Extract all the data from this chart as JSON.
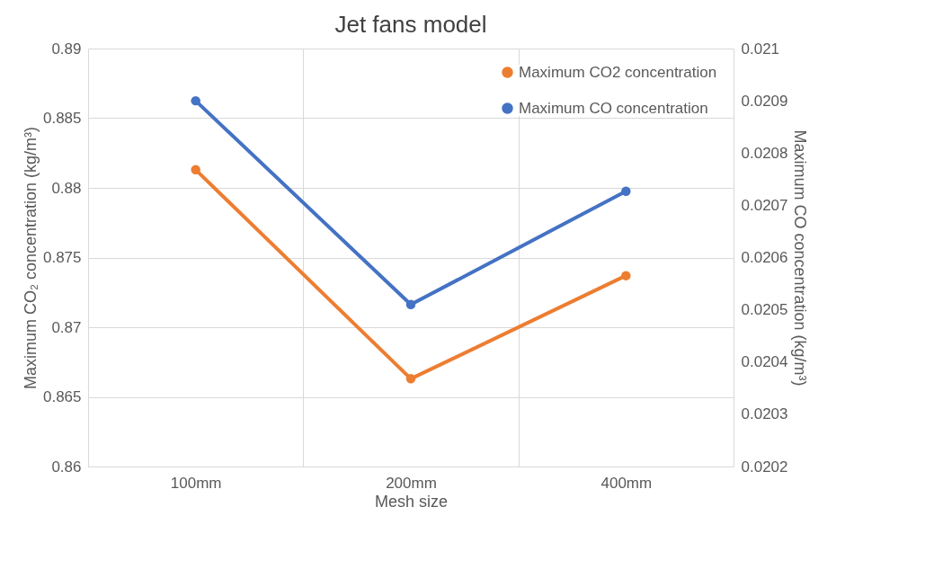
{
  "chart_data": {
    "type": "line",
    "title": "Jet fans model",
    "xlabel": "Mesh size",
    "ylabel": "Maximum CO₂ concentration (kg/m³)",
    "y2label": "Maximum CO concentration (kg/m³)",
    "categories": [
      "100mm",
      "200mm",
      "400mm"
    ],
    "series": [
      {
        "name": "Maximum CO2 concentration",
        "color": "#ed7d31",
        "values": [
          0.8813,
          0.8663,
          0.8737
        ]
      },
      {
        "name": "Maximum CO concentration",
        "color": "#4472c4",
        "axis": "y2",
        "values": [
          0.0209,
          0.02051,
          0.020727
        ]
      }
    ],
    "ylim": [
      0.86,
      0.89
    ],
    "yticks": [
      0.86,
      0.865,
      0.87,
      0.875,
      0.88,
      0.885,
      0.89
    ],
    "y2lim": [
      0.0202,
      0.021
    ],
    "y2ticks": [
      0.0202,
      0.0203,
      0.0204,
      0.0205,
      0.0206,
      0.0207,
      0.0208,
      0.0209,
      0.021
    ],
    "grid": true,
    "legend": "top right",
    "marker": "circle",
    "line_style": "solid"
  }
}
